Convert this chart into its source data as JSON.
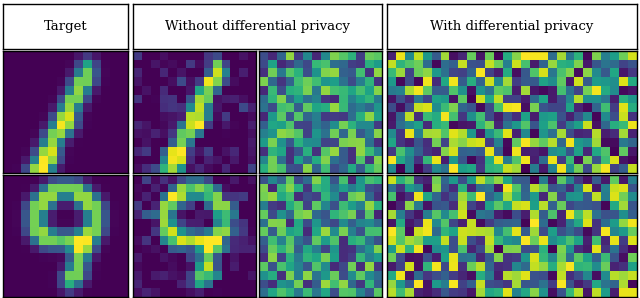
{
  "title_col1": "Target",
  "title_col2": "Without differential privacy",
  "title_col3": "With differential privacy",
  "colormap": "viridis",
  "bg": "#ffffff",
  "digit1_target": [
    [
      0,
      0,
      0,
      0,
      0,
      0,
      0,
      0,
      0,
      0,
      0,
      0,
      0,
      0
    ],
    [
      0,
      0,
      0,
      0,
      0,
      0,
      0,
      0,
      0,
      1,
      0,
      0,
      0,
      0
    ],
    [
      0,
      0,
      0,
      0,
      0,
      0,
      0,
      0,
      0,
      1,
      0,
      0,
      0,
      0
    ],
    [
      0,
      0,
      0,
      0,
      0,
      0,
      0,
      0,
      1,
      1,
      0,
      0,
      0,
      0
    ],
    [
      0,
      0,
      0,
      0,
      0,
      0,
      0,
      0,
      1,
      0,
      0,
      0,
      0,
      0
    ],
    [
      0,
      0,
      0,
      0,
      0,
      0,
      0,
      1,
      1,
      0,
      0,
      0,
      0,
      0
    ],
    [
      0,
      0,
      0,
      0,
      0,
      0,
      0,
      1,
      0,
      0,
      0,
      0,
      0,
      0
    ],
    [
      0,
      0,
      0,
      0,
      0,
      0,
      1,
      1,
      0,
      0,
      0,
      0,
      0,
      0
    ],
    [
      0,
      0,
      0,
      0,
      0,
      0,
      1,
      1,
      0,
      0,
      0,
      0,
      0,
      0
    ],
    [
      0,
      0,
      0,
      0,
      0,
      1,
      1,
      0,
      0,
      0,
      0,
      0,
      0,
      0
    ],
    [
      0,
      0,
      0,
      0,
      0,
      1,
      0,
      0,
      0,
      0,
      0,
      0,
      0,
      0
    ],
    [
      0,
      0,
      0,
      0,
      1,
      1,
      0,
      0,
      0,
      0,
      0,
      0,
      0,
      0
    ],
    [
      0,
      0,
      0,
      0,
      1,
      1,
      0,
      0,
      0,
      0,
      0,
      0,
      0,
      0
    ],
    [
      0,
      0,
      0,
      1,
      1,
      0,
      0,
      0,
      0,
      0,
      0,
      0,
      0,
      0
    ]
  ],
  "digit9_target": [
    [
      0,
      0,
      0,
      0,
      0,
      0,
      0,
      0,
      0,
      0,
      0,
      0,
      0,
      0
    ],
    [
      0,
      0,
      0,
      0,
      0,
      1,
      1,
      1,
      1,
      0,
      0,
      0,
      0,
      0
    ],
    [
      0,
      0,
      0,
      0,
      1,
      1,
      0,
      0,
      1,
      1,
      0,
      0,
      0,
      0
    ],
    [
      0,
      0,
      0,
      1,
      1,
      0,
      0,
      0,
      0,
      1,
      1,
      0,
      0,
      0
    ],
    [
      0,
      0,
      0,
      1,
      0,
      0,
      0,
      0,
      0,
      0,
      1,
      0,
      0,
      0
    ],
    [
      0,
      0,
      0,
      1,
      0,
      0,
      0,
      0,
      0,
      0,
      1,
      0,
      0,
      0
    ],
    [
      0,
      0,
      0,
      1,
      1,
      0,
      0,
      0,
      0,
      1,
      1,
      0,
      0,
      0
    ],
    [
      0,
      0,
      0,
      0,
      1,
      1,
      1,
      1,
      1,
      1,
      0,
      0,
      0,
      0
    ],
    [
      0,
      0,
      0,
      0,
      0,
      0,
      0,
      0,
      1,
      1,
      0,
      0,
      0,
      0
    ],
    [
      0,
      0,
      0,
      0,
      0,
      0,
      0,
      0,
      1,
      0,
      0,
      0,
      0,
      0
    ],
    [
      0,
      0,
      0,
      0,
      0,
      0,
      0,
      0,
      1,
      0,
      0,
      0,
      0,
      0
    ],
    [
      0,
      0,
      0,
      0,
      0,
      0,
      0,
      1,
      1,
      0,
      0,
      0,
      0,
      0
    ],
    [
      0,
      0,
      0,
      0,
      0,
      0,
      0,
      1,
      0,
      0,
      0,
      0,
      0,
      0
    ],
    [
      0,
      0,
      0,
      0,
      0,
      0,
      0,
      0,
      0,
      0,
      0,
      0,
      0,
      0
    ]
  ]
}
